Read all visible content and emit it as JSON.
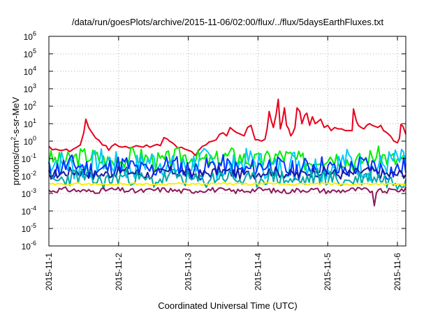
{
  "chart_data": {
    "type": "line",
    "title": "/data/run/goesPlots/archive/2015-11-06/02:00/flux/../flux/5daysEarthFluxes.txt",
    "xlabel": "Coordinated Universal Time (UTC)",
    "ylabel_base": "protons/cm",
    "ylabel_sup": "2",
    "ylabel_rest": "-s-sr-MeV",
    "y_scale": "log",
    "ylim_exp": [
      -6,
      6
    ],
    "xlim": [
      0,
      5.12
    ],
    "x_tick_labels": [
      {
        "x": 0,
        "label": "2015-11-1"
      },
      {
        "x": 1,
        "label": "2015-11-2"
      },
      {
        "x": 2,
        "label": "2015-11-3"
      },
      {
        "x": 3,
        "label": "2015-11-4"
      },
      {
        "x": 4,
        "label": "2015-11-5"
      },
      {
        "x": 5,
        "label": "2015-11-6"
      }
    ],
    "y_tick_base": "10",
    "y_tick_exponents": [
      "6",
      "5",
      "4",
      "3",
      "2",
      "1",
      "0",
      "-1",
      "-2",
      "-3",
      "-4",
      "-5",
      "-6"
    ],
    "grid": true,
    "series": [
      {
        "color": "#e8001c",
        "points": [
          [
            0.0,
            0.5
          ],
          [
            0.05,
            0.32
          ],
          [
            0.1,
            0.35
          ],
          [
            0.15,
            0.3
          ],
          [
            0.2,
            0.3
          ],
          [
            0.25,
            0.35
          ],
          [
            0.3,
            0.25
          ],
          [
            0.35,
            0.35
          ],
          [
            0.4,
            0.45
          ],
          [
            0.45,
            0.6
          ],
          [
            0.5,
            3
          ],
          [
            0.53,
            18
          ],
          [
            0.57,
            6
          ],
          [
            0.62,
            3
          ],
          [
            0.67,
            1.5
          ],
          [
            0.72,
            1.1
          ],
          [
            0.77,
            0.6
          ],
          [
            0.82,
            0.55
          ],
          [
            0.86,
            0.3
          ],
          [
            0.9,
            0.5
          ],
          [
            0.95,
            0.7
          ],
          [
            1.0,
            0.5
          ],
          [
            1.05,
            0.45
          ],
          [
            1.1,
            0.5
          ],
          [
            1.15,
            0.4
          ],
          [
            1.2,
            0.45
          ],
          [
            1.25,
            0.55
          ],
          [
            1.3,
            0.5
          ],
          [
            1.35,
            0.45
          ],
          [
            1.4,
            0.6
          ],
          [
            1.45,
            0.45
          ],
          [
            1.5,
            0.55
          ],
          [
            1.55,
            0.65
          ],
          [
            1.6,
            0.55
          ],
          [
            1.65,
            1.6
          ],
          [
            1.7,
            1.3
          ],
          [
            1.73,
            1.0
          ],
          [
            1.77,
            0.8
          ],
          [
            1.8,
            0.65
          ],
          [
            1.85,
            0.4
          ],
          [
            1.9,
            0.45
          ],
          [
            1.95,
            0.35
          ],
          [
            2.0,
            0.3
          ],
          [
            2.05,
            0.25
          ],
          [
            2.1,
            0.15
          ],
          [
            2.15,
            0.3
          ],
          [
            2.2,
            0.5
          ],
          [
            2.25,
            0.6
          ],
          [
            2.3,
            0.9
          ],
          [
            2.35,
            1.0
          ],
          [
            2.4,
            1.2
          ],
          [
            2.45,
            2.5
          ],
          [
            2.5,
            3
          ],
          [
            2.55,
            2
          ],
          [
            2.6,
            6
          ],
          [
            2.65,
            4
          ],
          [
            2.7,
            3
          ],
          [
            2.75,
            2.5
          ],
          [
            2.8,
            2
          ],
          [
            2.85,
            6
          ],
          [
            2.9,
            8
          ],
          [
            2.93,
            3
          ],
          [
            2.96,
            1.2
          ],
          [
            3.0,
            1.2
          ],
          [
            3.05,
            1.0
          ],
          [
            3.1,
            1.3
          ],
          [
            3.13,
            5
          ],
          [
            3.16,
            50
          ],
          [
            3.19,
            15
          ],
          [
            3.22,
            6
          ],
          [
            3.26,
            35
          ],
          [
            3.29,
            250
          ],
          [
            3.32,
            5
          ],
          [
            3.35,
            15
          ],
          [
            3.38,
            80
          ],
          [
            3.41,
            8
          ],
          [
            3.44,
            5
          ],
          [
            3.47,
            2
          ],
          [
            3.5,
            3
          ],
          [
            3.53,
            6
          ],
          [
            3.56,
            80
          ],
          [
            3.6,
            50
          ],
          [
            3.63,
            10
          ],
          [
            3.67,
            30
          ],
          [
            3.7,
            40
          ],
          [
            3.74,
            8
          ],
          [
            3.78,
            25
          ],
          [
            3.82,
            10
          ],
          [
            3.85,
            12
          ],
          [
            3.9,
            18
          ],
          [
            3.95,
            6
          ],
          [
            4.0,
            8
          ],
          [
            4.05,
            4
          ],
          [
            4.1,
            6
          ],
          [
            4.15,
            5
          ],
          [
            4.2,
            5
          ],
          [
            4.25,
            4
          ],
          [
            4.3,
            4
          ],
          [
            4.35,
            4
          ],
          [
            4.37,
            70
          ],
          [
            4.41,
            15
          ],
          [
            4.44,
            8
          ],
          [
            4.48,
            6
          ],
          [
            4.52,
            5
          ],
          [
            4.56,
            8
          ],
          [
            4.6,
            10
          ],
          [
            4.64,
            8
          ],
          [
            4.68,
            7
          ],
          [
            4.72,
            6
          ],
          [
            4.76,
            8
          ],
          [
            4.8,
            4
          ],
          [
            4.85,
            3
          ],
          [
            4.9,
            2
          ],
          [
            4.95,
            1
          ],
          [
            5.0,
            0.8
          ],
          [
            5.03,
            1.5
          ],
          [
            5.05,
            9
          ],
          [
            5.08,
            7
          ],
          [
            5.12,
            2.5
          ]
        ]
      },
      {
        "color": "#00ee00",
        "base": 0.1,
        "amp": 0.55,
        "seed": 3
      },
      {
        "color": "#00c8ff",
        "base": 0.045,
        "amp": 0.75,
        "seed": 7
      },
      {
        "color": "#0033ff",
        "base": 0.03,
        "amp": 0.6,
        "seed": 11
      },
      {
        "color": "#1a1aa0",
        "base": 0.015,
        "amp": 0.3,
        "seed": 17
      },
      {
        "color": "#00a8a8",
        "base": 0.007,
        "amp": 0.5,
        "seed": 23
      },
      {
        "color": "#ffee00",
        "base": 0.0035,
        "amp": 0.06,
        "seed": 29
      },
      {
        "color": "#8b1a5a",
        "base": 0.0015,
        "amp": 0.15,
        "seed": 31,
        "dip": [
          4.66,
          0.0002
        ]
      }
    ]
  }
}
